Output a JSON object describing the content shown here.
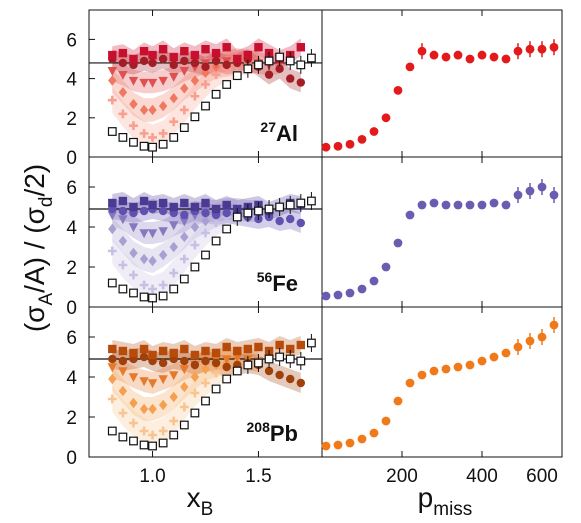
{
  "figure": {
    "ylabel_parts": [
      "(σ",
      "A",
      "/A) / (σ",
      "d",
      "/2)"
    ],
    "xlabel_left": {
      "main": "x",
      "sub": "B"
    },
    "xlabel_right": {
      "main": "p",
      "sub": "miss"
    }
  },
  "chart_data": [
    {
      "type": "scatter",
      "panel": "27Al vs xB",
      "nucleus": {
        "mass": "27",
        "symbol": "Al"
      },
      "xlim": [
        0.7,
        1.8
      ],
      "ylim": [
        0,
        7.5
      ],
      "xticks": [
        1.0,
        1.5
      ],
      "xticklabels": [
        "1.0",
        "1.5"
      ],
      "yticks": [
        0,
        2,
        4,
        6
      ],
      "yticklabels": [
        "0",
        "2",
        "4",
        "6"
      ],
      "color": "#c8102e",
      "reference_line": 4.8,
      "open_squares": {
        "x": [
          0.81,
          0.86,
          0.91,
          0.96,
          1.0,
          1.05,
          1.1,
          1.15,
          1.2,
          1.25,
          1.3,
          1.35,
          1.4,
          1.45,
          1.5,
          1.55,
          1.6,
          1.65,
          1.7,
          1.75
        ],
        "y": [
          1.3,
          1.0,
          0.75,
          0.55,
          0.5,
          0.65,
          1.0,
          1.5,
          2.05,
          2.6,
          3.2,
          3.7,
          4.15,
          4.5,
          4.7,
          4.9,
          5.1,
          4.9,
          4.7,
          5.05
        ]
      },
      "series": [
        {
          "marker": "square",
          "color": "#c8102e",
          "x": [
            0.81,
            0.86,
            0.91,
            0.96,
            1.0,
            1.05,
            1.1,
            1.15,
            1.2,
            1.25,
            1.3,
            1.35,
            1.4,
            1.45,
            1.5,
            1.55,
            1.6,
            1.65,
            1.7
          ],
          "y": [
            5.2,
            5.3,
            5.0,
            5.4,
            5.2,
            5.5,
            5.1,
            5.4,
            5.2,
            5.5,
            5.3,
            5.6,
            5.0,
            5.2,
            5.6,
            5.3,
            5.0,
            5.2,
            5.6
          ]
        },
        {
          "marker": "circle",
          "color": "#a31d24",
          "x": [
            0.81,
            0.86,
            0.91,
            0.96,
            1.0,
            1.05,
            1.1,
            1.15,
            1.2,
            1.25,
            1.3,
            1.35,
            1.4,
            1.45,
            1.5,
            1.55,
            1.6,
            1.65,
            1.7
          ],
          "y": [
            5.0,
            4.8,
            4.7,
            4.9,
            4.8,
            5.0,
            4.7,
            4.9,
            4.8,
            4.6,
            4.9,
            4.7,
            4.8,
            5.0,
            4.6,
            4.2,
            4.5,
            4.0,
            3.8
          ]
        },
        {
          "marker": "triangle",
          "color": "#e05050",
          "x": [
            0.81,
            0.86,
            0.91,
            0.96,
            1.0,
            1.05,
            1.1,
            1.15,
            1.2,
            1.25,
            1.3,
            1.35,
            1.4,
            1.45,
            1.5,
            1.55,
            1.6
          ],
          "y": [
            4.4,
            4.2,
            3.9,
            3.8,
            3.8,
            3.9,
            4.1,
            4.4,
            4.6,
            4.8,
            4.8,
            4.9,
            5.0,
            4.9,
            4.8,
            4.7,
            4.8
          ]
        },
        {
          "marker": "diamond",
          "color": "#f07860",
          "x": [
            0.81,
            0.86,
            0.91,
            0.96,
            1.0,
            1.05,
            1.1,
            1.15,
            1.2,
            1.25,
            1.3,
            1.35,
            1.4,
            1.45,
            1.5
          ],
          "y": [
            3.9,
            3.3,
            2.7,
            2.4,
            2.4,
            2.6,
            3.0,
            3.5,
            3.9,
            4.3,
            4.6,
            4.7,
            4.8,
            4.8,
            4.9
          ]
        },
        {
          "marker": "cross",
          "color": "#f8a090",
          "x": [
            0.81,
            0.86,
            0.91,
            0.96,
            1.0,
            1.05,
            1.1,
            1.15,
            1.2,
            1.25,
            1.3,
            1.35,
            1.4
          ],
          "y": [
            2.9,
            2.2,
            1.6,
            1.2,
            1.0,
            1.2,
            1.8,
            2.4,
            3.1,
            3.7,
            4.2,
            4.5,
            4.7
          ]
        }
      ]
    },
    {
      "type": "scatter",
      "panel": "27Al vs pmiss",
      "xlim": [
        0,
        600
      ],
      "ylim": [
        0,
        7.5
      ],
      "xticks": [
        200,
        400,
        600
      ],
      "xticklabels": [
        "200",
        "400",
        "600"
      ],
      "color": "#e31a1c",
      "x": [
        10,
        40,
        70,
        100,
        130,
        160,
        190,
        220,
        250,
        280,
        310,
        340,
        370,
        400,
        430,
        460,
        490,
        520,
        550,
        580
      ],
      "y": [
        0.5,
        0.55,
        0.65,
        0.9,
        1.3,
        2.0,
        3.4,
        4.6,
        5.4,
        5.2,
        5.1,
        5.2,
        5.0,
        5.2,
        5.1,
        5.0,
        5.4,
        5.5,
        5.5,
        5.6
      ]
    },
    {
      "type": "scatter",
      "panel": "56Fe vs xB",
      "nucleus": {
        "mass": "56",
        "symbol": "Fe"
      },
      "xlim": [
        0.7,
        1.8
      ],
      "ylim": [
        0,
        7.5
      ],
      "xticks": [
        1.0,
        1.5
      ],
      "yticks": [
        0,
        2,
        4,
        6
      ],
      "yticklabels": [
        "0",
        "2",
        "4",
        "6"
      ],
      "color": "#5a4aa0",
      "reference_line": 4.9,
      "open_squares": {
        "x": [
          0.81,
          0.86,
          0.91,
          0.96,
          1.0,
          1.05,
          1.1,
          1.15,
          1.2,
          1.25,
          1.3,
          1.35,
          1.4,
          1.45,
          1.5,
          1.55,
          1.6,
          1.65,
          1.7,
          1.75
        ],
        "y": [
          1.2,
          0.9,
          0.7,
          0.5,
          0.45,
          0.55,
          0.9,
          1.4,
          2.0,
          2.6,
          3.3,
          3.9,
          4.5,
          4.7,
          4.8,
          4.9,
          5.0,
          5.1,
          5.2,
          5.3
        ]
      },
      "series": [
        {
          "marker": "square",
          "color": "#4b3a94",
          "x": [
            0.81,
            0.86,
            0.91,
            0.96,
            1.0,
            1.05,
            1.1,
            1.15,
            1.2,
            1.25,
            1.3,
            1.35,
            1.4,
            1.45,
            1.5,
            1.55,
            1.6,
            1.65,
            1.7
          ],
          "y": [
            5.2,
            5.3,
            5.0,
            5.3,
            5.1,
            5.2,
            5.0,
            5.2,
            5.0,
            5.2,
            4.9,
            5.1,
            4.9,
            5.0,
            5.1,
            4.8,
            5.0,
            5.2,
            5.1
          ]
        },
        {
          "marker": "circle",
          "color": "#6050b0",
          "x": [
            0.81,
            0.86,
            0.91,
            0.96,
            1.0,
            1.05,
            1.1,
            1.15,
            1.2,
            1.25,
            1.3,
            1.35,
            1.4,
            1.45,
            1.5,
            1.55,
            1.6,
            1.65,
            1.7
          ],
          "y": [
            4.9,
            4.8,
            4.7,
            4.8,
            4.9,
            4.8,
            4.7,
            4.6,
            4.8,
            4.7,
            4.6,
            4.7,
            4.6,
            4.5,
            4.4,
            4.5,
            4.3,
            4.4,
            4.2
          ]
        },
        {
          "marker": "triangle",
          "color": "#8878c0",
          "x": [
            0.81,
            0.86,
            0.91,
            0.96,
            1.0,
            1.05,
            1.1,
            1.15,
            1.2,
            1.25,
            1.3,
            1.35,
            1.4,
            1.45,
            1.5
          ],
          "y": [
            4.6,
            4.4,
            4.0,
            3.7,
            3.7,
            3.8,
            4.1,
            4.3,
            4.6,
            4.8,
            4.8,
            4.9,
            4.9,
            4.8,
            4.8
          ]
        },
        {
          "marker": "diamond",
          "color": "#a8a0d0",
          "x": [
            0.81,
            0.86,
            0.91,
            0.96,
            1.0,
            1.05,
            1.1,
            1.15,
            1.2,
            1.25,
            1.3,
            1.35,
            1.4
          ],
          "y": [
            3.9,
            3.3,
            2.7,
            2.4,
            2.3,
            2.6,
            3.0,
            3.5,
            4.0,
            4.3,
            4.6,
            4.7,
            4.8
          ]
        },
        {
          "marker": "cross",
          "color": "#c8c0e4",
          "x": [
            0.81,
            0.86,
            0.91,
            0.96,
            1.0,
            1.05,
            1.1,
            1.15,
            1.2,
            1.25,
            1.3,
            1.35
          ],
          "y": [
            2.8,
            2.1,
            1.6,
            1.1,
            0.9,
            1.1,
            1.7,
            2.4,
            3.1,
            3.7,
            4.2,
            4.5
          ]
        }
      ]
    },
    {
      "type": "scatter",
      "panel": "56Fe vs pmiss",
      "xlim": [
        0,
        600
      ],
      "ylim": [
        0,
        7.5
      ],
      "xticks": [
        200,
        400,
        600
      ],
      "color": "#6a5cb0",
      "x": [
        10,
        40,
        70,
        100,
        130,
        160,
        190,
        220,
        250,
        280,
        310,
        340,
        370,
        400,
        430,
        460,
        490,
        520,
        550,
        580
      ],
      "y": [
        0.55,
        0.6,
        0.7,
        0.9,
        1.3,
        2.0,
        3.2,
        4.6,
        5.1,
        5.2,
        5.1,
        5.1,
        5.1,
        5.1,
        5.2,
        5.1,
        5.6,
        5.8,
        6.0,
        5.6
      ]
    },
    {
      "type": "scatter",
      "panel": "208Pb vs xB",
      "nucleus": {
        "mass": "208",
        "symbol": "Pb"
      },
      "xlim": [
        0.7,
        1.8
      ],
      "ylim": [
        0,
        7.5
      ],
      "xticks": [
        1.0,
        1.5
      ],
      "xticklabels": [
        "1.0",
        "1.5"
      ],
      "yticks": [
        0,
        2,
        4,
        6
      ],
      "yticklabels": [
        "0",
        "2",
        "4",
        "6"
      ],
      "color": "#d95f0e",
      "reference_line": 4.9,
      "open_squares": {
        "x": [
          0.81,
          0.86,
          0.91,
          0.96,
          1.0,
          1.05,
          1.1,
          1.15,
          1.2,
          1.25,
          1.3,
          1.35,
          1.4,
          1.45,
          1.5,
          1.55,
          1.6,
          1.65,
          1.7,
          1.75
        ],
        "y": [
          1.3,
          1.0,
          0.8,
          0.6,
          0.55,
          0.7,
          1.1,
          1.6,
          2.2,
          2.8,
          3.4,
          3.9,
          4.3,
          4.6,
          4.7,
          4.9,
          5.0,
          4.9,
          4.8,
          5.7
        ]
      },
      "series": [
        {
          "marker": "square",
          "color": "#b84a0a",
          "x": [
            0.81,
            0.86,
            0.91,
            0.96,
            1.0,
            1.05,
            1.1,
            1.15,
            1.2,
            1.25,
            1.3,
            1.35,
            1.4,
            1.45,
            1.5,
            1.55,
            1.6,
            1.65,
            1.7
          ],
          "y": [
            5.4,
            5.3,
            5.2,
            5.4,
            5.1,
            5.3,
            5.2,
            5.4,
            5.1,
            5.3,
            5.2,
            5.5,
            5.3,
            5.4,
            5.5,
            5.3,
            5.6,
            5.4,
            5.6
          ]
        },
        {
          "marker": "circle",
          "color": "#a0400a",
          "x": [
            0.81,
            0.86,
            0.91,
            0.96,
            1.0,
            1.05,
            1.1,
            1.15,
            1.2,
            1.25,
            1.3,
            1.35,
            1.4,
            1.45,
            1.5,
            1.55,
            1.6,
            1.65,
            1.7
          ],
          "y": [
            4.9,
            4.8,
            4.9,
            5.0,
            4.8,
            4.7,
            4.9,
            4.8,
            4.6,
            4.8,
            4.7,
            4.5,
            4.6,
            4.7,
            4.6,
            4.3,
            4.1,
            3.9,
            3.7
          ]
        },
        {
          "marker": "triangle",
          "color": "#e67a2a",
          "x": [
            0.81,
            0.86,
            0.91,
            0.96,
            1.0,
            1.05,
            1.1,
            1.15,
            1.2,
            1.25,
            1.3,
            1.35,
            1.4,
            1.45,
            1.5
          ],
          "y": [
            4.5,
            4.3,
            4.0,
            3.8,
            3.7,
            3.9,
            4.1,
            4.4,
            4.6,
            4.8,
            4.9,
            4.9,
            5.0,
            4.9,
            4.8
          ]
        },
        {
          "marker": "diamond",
          "color": "#f4a050",
          "x": [
            0.81,
            0.86,
            0.91,
            0.96,
            1.0,
            1.05,
            1.1,
            1.15,
            1.2,
            1.25,
            1.3,
            1.35,
            1.4
          ],
          "y": [
            3.9,
            3.3,
            2.7,
            2.4,
            2.4,
            2.6,
            3.0,
            3.5,
            4.0,
            4.4,
            4.6,
            4.7,
            4.8
          ]
        },
        {
          "marker": "cross",
          "color": "#f8c490",
          "x": [
            0.81,
            0.86,
            0.91,
            0.96,
            1.0,
            1.05,
            1.1,
            1.15,
            1.2,
            1.25,
            1.3,
            1.35
          ],
          "y": [
            2.9,
            2.2,
            1.7,
            1.3,
            1.1,
            1.3,
            1.8,
            2.5,
            3.2,
            3.7,
            4.2,
            4.5
          ]
        }
      ]
    },
    {
      "type": "scatter",
      "panel": "208Pb vs pmiss",
      "xlim": [
        0,
        600
      ],
      "ylim": [
        0,
        7.5
      ],
      "xticks": [
        200,
        400,
        600
      ],
      "xticklabels": [
        "200",
        "400",
        "600"
      ],
      "color": "#f07a1a",
      "x": [
        10,
        40,
        70,
        100,
        130,
        160,
        190,
        220,
        250,
        280,
        310,
        340,
        370,
        400,
        430,
        460,
        490,
        520,
        550,
        580
      ],
      "y": [
        0.55,
        0.6,
        0.7,
        0.9,
        1.2,
        1.8,
        2.8,
        3.7,
        4.1,
        4.3,
        4.4,
        4.5,
        4.6,
        4.8,
        5.0,
        5.2,
        5.5,
        5.8,
        6.0,
        6.6
      ]
    }
  ]
}
